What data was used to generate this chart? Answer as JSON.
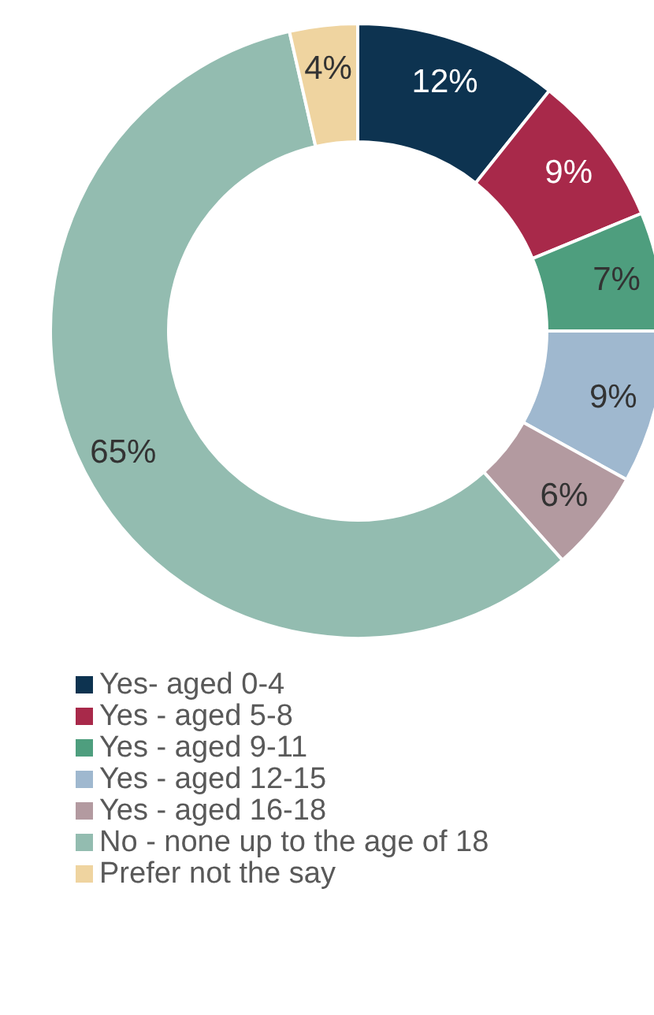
{
  "chart_data": {
    "type": "donut",
    "categories": [
      "Yes- aged 0-4",
      "Yes - aged 5-8",
      "Yes - aged 9-11",
      "Yes - aged 12-15",
      "Yes - aged 16-18",
      "No - none up to the age of 18",
      "Prefer not the say"
    ],
    "values": [
      12,
      9,
      7,
      9,
      6,
      65,
      4
    ],
    "colors": [
      "#0d3350",
      "#a8294a",
      "#4e9e7e",
      "#9fb8cf",
      "#b39aa0",
      "#93bcb0",
      "#efd4a0"
    ],
    "value_labels": [
      "12%",
      "9%",
      "7%",
      "9%",
      "6%",
      "65%",
      "4%"
    ],
    "legend": "bottom"
  }
}
